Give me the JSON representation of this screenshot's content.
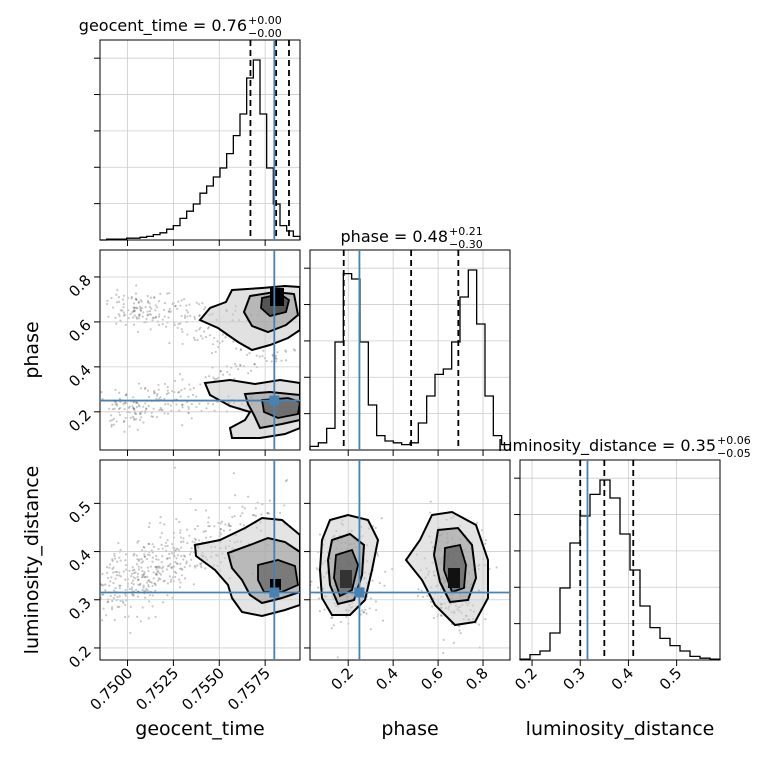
{
  "chart_data": {
    "type": "corner",
    "parameters": [
      "geocent_time",
      "phase",
      "luminosity_distance"
    ],
    "truths": {
      "geocent_time": 0.758,
      "phase": 0.25,
      "luminosity_distance": 0.315
    },
    "truth_color": "#4682b4",
    "ranges": {
      "geocent_time": [
        0.7485,
        0.7594
      ],
      "phase": [
        0.03,
        0.92
      ],
      "luminosity_distance": [
        0.175,
        0.59
      ]
    },
    "axis_ticks": {
      "geocent_time": [
        "0.7500",
        "0.7525",
        "0.7550",
        "0.7575"
      ],
      "phase_bottom": [
        "0.2",
        "0.4",
        "0.6",
        "0.8"
      ],
      "phase_left": [
        "0.2",
        "0.4",
        "0.6",
        "0.8"
      ],
      "luminosity_distance_bottom": [
        "0.2",
        "0.3",
        "0.4",
        "0.5"
      ],
      "luminosity_distance_left": [
        "0.2",
        "0.3",
        "0.4",
        "0.5"
      ]
    },
    "axis_labels": {
      "geocent_time": "geocent_time",
      "phase": "phase",
      "luminosity_distance": "luminosity_distance"
    },
    "titles": {
      "geocent_time": {
        "label": "geocent_time = 0.76",
        "plus": "+0.00",
        "minus": "−0.00"
      },
      "phase": {
        "label": "phase = 0.48",
        "plus": "+0.21",
        "minus": "−0.30"
      },
      "luminosity_distance": {
        "label": "luminosity_distance = 0.35",
        "plus": "+0.06",
        "minus": "−0.05"
      }
    },
    "histograms": {
      "geocent_time": {
        "bins": [
          0.7485,
          0.7594
        ],
        "counts": [
          0,
          0.5,
          0.5,
          0.5,
          1,
          1,
          1.5,
          2,
          3,
          4,
          6,
          8,
          12,
          16,
          20,
          26,
          30,
          35,
          40,
          48,
          58,
          70,
          90,
          100,
          70,
          40,
          20,
          8,
          5,
          2
        ],
        "quantiles": [
          0.7567,
          0.7581,
          0.7588
        ]
      },
      "phase": {
        "bins": [
          0.03,
          0.92
        ],
        "counts": [
          2,
          4,
          12,
          60,
          98,
          95,
          60,
          25,
          8,
          5,
          4,
          3,
          4,
          15,
          30,
          42,
          45,
          60,
          85,
          100,
          70,
          30,
          8,
          3
        ],
        "quantiles": [
          0.18,
          0.48,
          0.69
        ]
      },
      "luminosity_distance": {
        "bins": [
          0.175,
          0.59
        ],
        "counts": [
          0.5,
          3,
          5,
          15,
          40,
          65,
          80,
          92,
          100,
          90,
          70,
          50,
          30,
          18,
          12,
          8,
          5,
          2,
          1,
          0.5
        ],
        "quantiles": [
          0.3,
          0.35,
          0.41
        ]
      }
    }
  }
}
